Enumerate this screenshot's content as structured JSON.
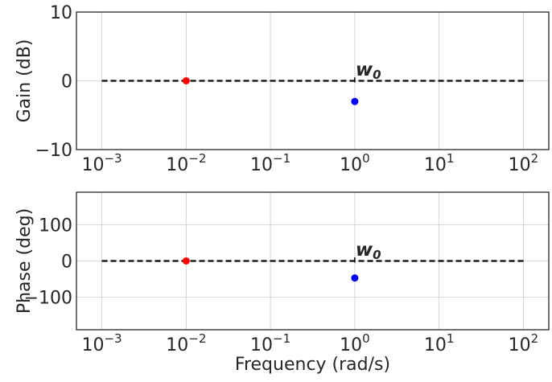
{
  "chart_data": [
    {
      "type": "scatter",
      "ylabel": "Gain (dB)",
      "xscale": "log",
      "xlim": [
        0.0005,
        200
      ],
      "ylim": [
        -10,
        10
      ],
      "x_ticks": [
        {
          "value": 0.001,
          "base": "10",
          "exp": "−3"
        },
        {
          "value": 0.01,
          "base": "10",
          "exp": "−2"
        },
        {
          "value": 0.1,
          "base": "10",
          "exp": "−1"
        },
        {
          "value": 1,
          "base": "10",
          "exp": "0"
        },
        {
          "value": 10,
          "base": "10",
          "exp": "1"
        },
        {
          "value": 100,
          "base": "10",
          "exp": "2"
        }
      ],
      "y_ticks": [
        {
          "value": -10,
          "label": "−10"
        },
        {
          "value": 0,
          "label": "0"
        },
        {
          "value": 10,
          "label": "10"
        }
      ],
      "grid": true,
      "reference_line": {
        "style": "dashed",
        "color": "#000000",
        "y": 0,
        "x_range": [
          0.001,
          100
        ]
      },
      "marker_line": {
        "x": 1,
        "y_range": [
          0,
          0.5
        ]
      },
      "annotation": {
        "x": 1,
        "y": 0.5,
        "base": "w",
        "sub": "0"
      },
      "points": [
        {
          "x": 0.01,
          "y": 0,
          "color": "#ff0000"
        },
        {
          "x": 1,
          "y": -3,
          "color": "#0000ff"
        }
      ]
    },
    {
      "type": "scatter",
      "xlabel": "Frequency (rad/s)",
      "ylabel": "Phase (deg)",
      "xscale": "log",
      "xlim": [
        0.0005,
        200
      ],
      "ylim": [
        -190,
        190
      ],
      "x_ticks": [
        {
          "value": 0.001,
          "base": "10",
          "exp": "−3"
        },
        {
          "value": 0.01,
          "base": "10",
          "exp": "−2"
        },
        {
          "value": 0.1,
          "base": "10",
          "exp": "−1"
        },
        {
          "value": 1,
          "base": "10",
          "exp": "0"
        },
        {
          "value": 10,
          "base": "10",
          "exp": "1"
        },
        {
          "value": 100,
          "base": "10",
          "exp": "2"
        }
      ],
      "y_ticks": [
        {
          "value": -100,
          "label": "−100"
        },
        {
          "value": 0,
          "label": "0"
        },
        {
          "value": 100,
          "label": "100"
        }
      ],
      "grid": true,
      "reference_line": {
        "style": "dashed",
        "color": "#000000",
        "y": 0,
        "x_range": [
          0.001,
          100
        ]
      },
      "marker_line": {
        "x": 1,
        "y_range": [
          0,
          10
        ]
      },
      "annotation": {
        "x": 1,
        "y": 10,
        "base": "w",
        "sub": "0"
      },
      "points": [
        {
          "x": 0.01,
          "y": 0,
          "color": "#ff0000"
        },
        {
          "x": 1,
          "y": -47,
          "color": "#0000ff"
        }
      ]
    }
  ]
}
